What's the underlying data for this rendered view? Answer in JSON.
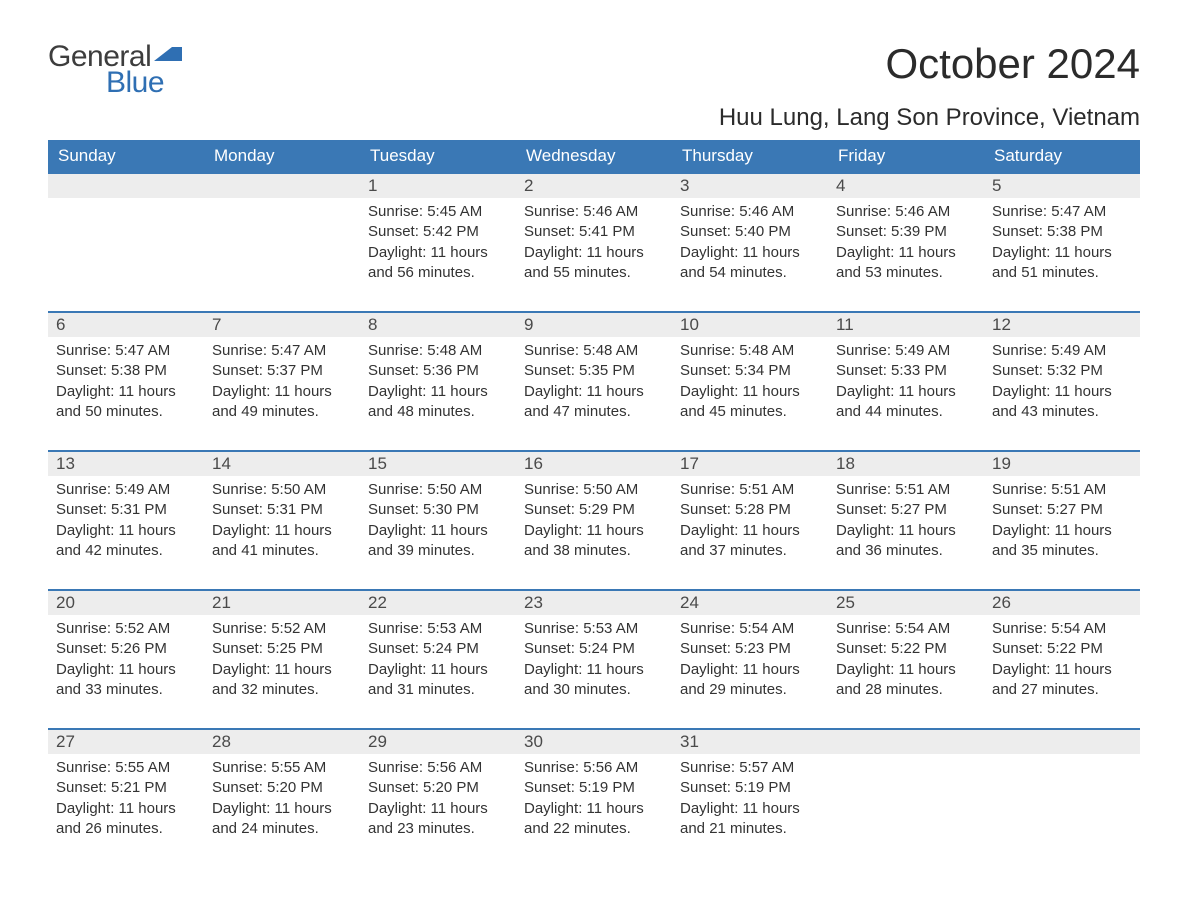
{
  "logo": {
    "text_general": "General",
    "text_blue": "Blue",
    "flag_color": "#2f6fb3"
  },
  "title": "October 2024",
  "location": "Huu Lung, Lang Son Province, Vietnam",
  "colors": {
    "header_bg": "#3a78b5",
    "header_text": "#ffffff",
    "daynum_bg": "#ededed",
    "row_border": "#3a78b5",
    "body_text": "#333333"
  },
  "typography": {
    "title_fontsize_pt": 32,
    "location_fontsize_pt": 18,
    "weekday_fontsize_pt": 13,
    "daynum_fontsize_pt": 13,
    "cell_fontsize_pt": 11
  },
  "layout": {
    "columns": 7,
    "rows": 5,
    "first_day_column_index": 2
  },
  "weekdays": [
    "Sunday",
    "Monday",
    "Tuesday",
    "Wednesday",
    "Thursday",
    "Friday",
    "Saturday"
  ],
  "days": [
    {
      "n": 1,
      "sunrise": "5:45 AM",
      "sunset": "5:42 PM",
      "daylight": "11 hours and 56 minutes."
    },
    {
      "n": 2,
      "sunrise": "5:46 AM",
      "sunset": "5:41 PM",
      "daylight": "11 hours and 55 minutes."
    },
    {
      "n": 3,
      "sunrise": "5:46 AM",
      "sunset": "5:40 PM",
      "daylight": "11 hours and 54 minutes."
    },
    {
      "n": 4,
      "sunrise": "5:46 AM",
      "sunset": "5:39 PM",
      "daylight": "11 hours and 53 minutes."
    },
    {
      "n": 5,
      "sunrise": "5:47 AM",
      "sunset": "5:38 PM",
      "daylight": "11 hours and 51 minutes."
    },
    {
      "n": 6,
      "sunrise": "5:47 AM",
      "sunset": "5:38 PM",
      "daylight": "11 hours and 50 minutes."
    },
    {
      "n": 7,
      "sunrise": "5:47 AM",
      "sunset": "5:37 PM",
      "daylight": "11 hours and 49 minutes."
    },
    {
      "n": 8,
      "sunrise": "5:48 AM",
      "sunset": "5:36 PM",
      "daylight": "11 hours and 48 minutes."
    },
    {
      "n": 9,
      "sunrise": "5:48 AM",
      "sunset": "5:35 PM",
      "daylight": "11 hours and 47 minutes."
    },
    {
      "n": 10,
      "sunrise": "5:48 AM",
      "sunset": "5:34 PM",
      "daylight": "11 hours and 45 minutes."
    },
    {
      "n": 11,
      "sunrise": "5:49 AM",
      "sunset": "5:33 PM",
      "daylight": "11 hours and 44 minutes."
    },
    {
      "n": 12,
      "sunrise": "5:49 AM",
      "sunset": "5:32 PM",
      "daylight": "11 hours and 43 minutes."
    },
    {
      "n": 13,
      "sunrise": "5:49 AM",
      "sunset": "5:31 PM",
      "daylight": "11 hours and 42 minutes."
    },
    {
      "n": 14,
      "sunrise": "5:50 AM",
      "sunset": "5:31 PM",
      "daylight": "11 hours and 41 minutes."
    },
    {
      "n": 15,
      "sunrise": "5:50 AM",
      "sunset": "5:30 PM",
      "daylight": "11 hours and 39 minutes."
    },
    {
      "n": 16,
      "sunrise": "5:50 AM",
      "sunset": "5:29 PM",
      "daylight": "11 hours and 38 minutes."
    },
    {
      "n": 17,
      "sunrise": "5:51 AM",
      "sunset": "5:28 PM",
      "daylight": "11 hours and 37 minutes."
    },
    {
      "n": 18,
      "sunrise": "5:51 AM",
      "sunset": "5:27 PM",
      "daylight": "11 hours and 36 minutes."
    },
    {
      "n": 19,
      "sunrise": "5:51 AM",
      "sunset": "5:27 PM",
      "daylight": "11 hours and 35 minutes."
    },
    {
      "n": 20,
      "sunrise": "5:52 AM",
      "sunset": "5:26 PM",
      "daylight": "11 hours and 33 minutes."
    },
    {
      "n": 21,
      "sunrise": "5:52 AM",
      "sunset": "5:25 PM",
      "daylight": "11 hours and 32 minutes."
    },
    {
      "n": 22,
      "sunrise": "5:53 AM",
      "sunset": "5:24 PM",
      "daylight": "11 hours and 31 minutes."
    },
    {
      "n": 23,
      "sunrise": "5:53 AM",
      "sunset": "5:24 PM",
      "daylight": "11 hours and 30 minutes."
    },
    {
      "n": 24,
      "sunrise": "5:54 AM",
      "sunset": "5:23 PM",
      "daylight": "11 hours and 29 minutes."
    },
    {
      "n": 25,
      "sunrise": "5:54 AM",
      "sunset": "5:22 PM",
      "daylight": "11 hours and 28 minutes."
    },
    {
      "n": 26,
      "sunrise": "5:54 AM",
      "sunset": "5:22 PM",
      "daylight": "11 hours and 27 minutes."
    },
    {
      "n": 27,
      "sunrise": "5:55 AM",
      "sunset": "5:21 PM",
      "daylight": "11 hours and 26 minutes."
    },
    {
      "n": 28,
      "sunrise": "5:55 AM",
      "sunset": "5:20 PM",
      "daylight": "11 hours and 24 minutes."
    },
    {
      "n": 29,
      "sunrise": "5:56 AM",
      "sunset": "5:20 PM",
      "daylight": "11 hours and 23 minutes."
    },
    {
      "n": 30,
      "sunrise": "5:56 AM",
      "sunset": "5:19 PM",
      "daylight": "11 hours and 22 minutes."
    },
    {
      "n": 31,
      "sunrise": "5:57 AM",
      "sunset": "5:19 PM",
      "daylight": "11 hours and 21 minutes."
    }
  ],
  "labels": {
    "sunrise": "Sunrise:",
    "sunset": "Sunset:",
    "daylight": "Daylight:"
  }
}
